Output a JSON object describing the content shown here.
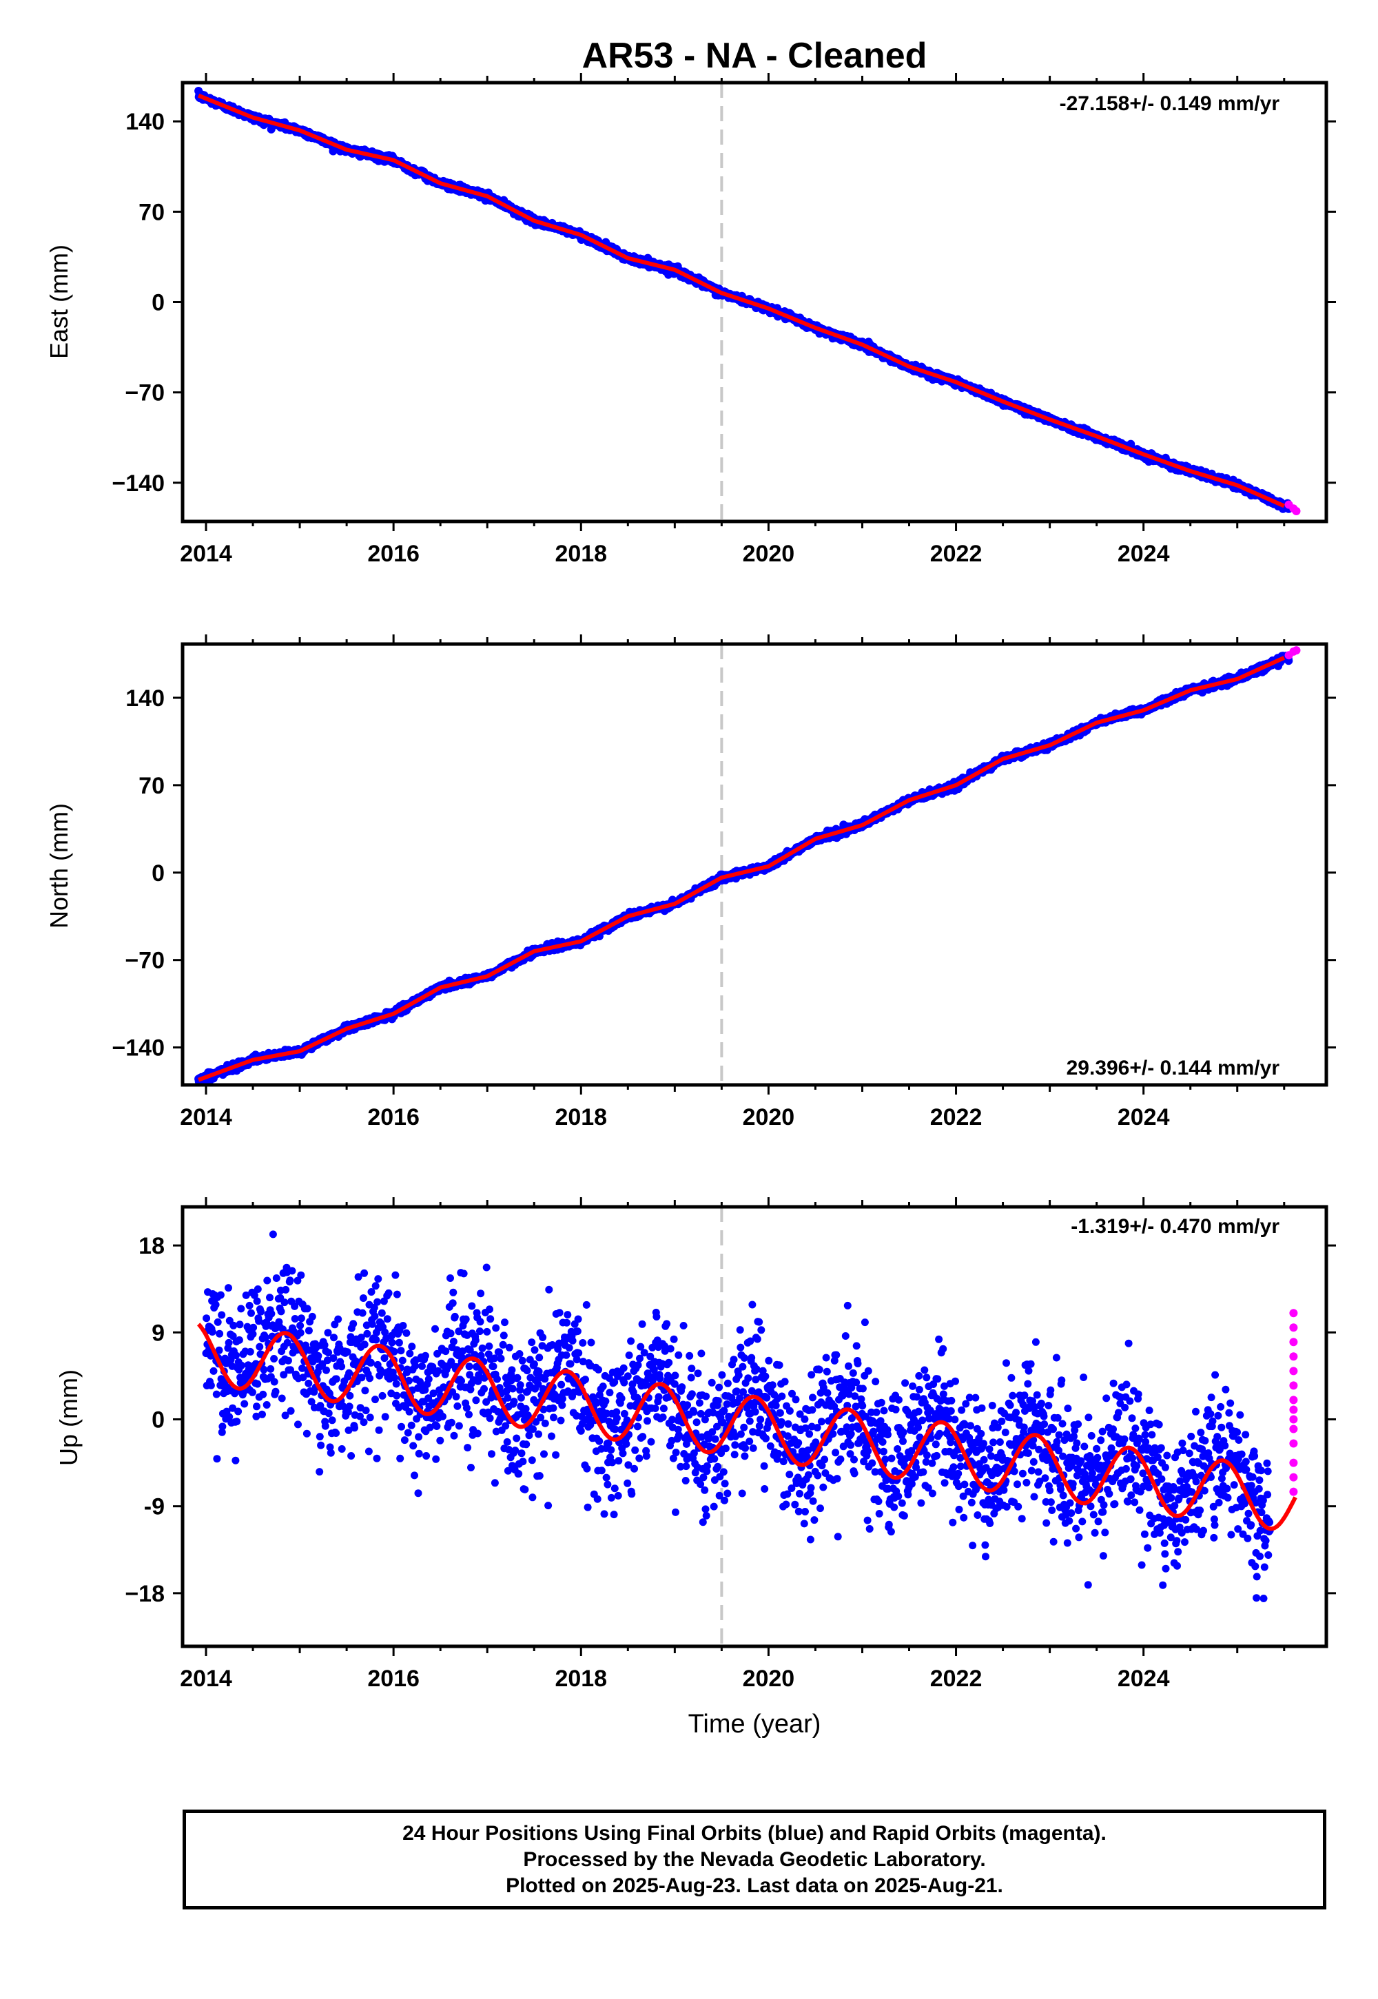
{
  "title": "AR53  - NA - Cleaned",
  "colors": {
    "final_orbits": "#0000ff",
    "rapid_orbits": "#ff00ff",
    "model": "#ff0000",
    "event_line": "#c8c8c8",
    "frame": "#000000"
  },
  "event_line_year": 2019.5,
  "caption": {
    "line1": "24 Hour Positions Using Final Orbits (blue) and Rapid Orbits (magenta).",
    "line2": "Processed by the Nevada Geodetic Laboratory.",
    "line3": "Plotted on 2025-Aug-23. Last data on 2025-Aug-21."
  },
  "chart_data": [
    {
      "type": "scatter",
      "ylabel": "East (mm)",
      "xlabel": "",
      "xlim": [
        2013.75,
        2025.95
      ],
      "ylim": [
        -170,
        170
      ],
      "xticks": [
        "2014",
        "2016",
        "2018",
        "2020",
        "2022",
        "2024"
      ],
      "yticks": [
        "140",
        "70",
        "0",
        "−70",
        "−140"
      ],
      "ytick_values": [
        140,
        70,
        0,
        -70,
        -140
      ],
      "rate_label": "-27.158+/- 0.149 mm/yr",
      "rate_position": "top-right",
      "velocity_mm_per_yr": -27.158,
      "series": [
        {
          "name": "Final Orbits (blue)",
          "x": [
            2013.92,
            2014.5,
            2015.0,
            2015.5,
            2016.0,
            2016.5,
            2017.0,
            2017.5,
            2018.0,
            2018.5,
            2019.0,
            2019.5,
            2020.0,
            2020.5,
            2021.0,
            2021.5,
            2022.0,
            2022.5,
            2023.0,
            2023.5,
            2024.0,
            2024.5,
            2025.0,
            2025.5
          ],
          "y": [
            160,
            143,
            133,
            118,
            110,
            92,
            82,
            63,
            52,
            34,
            25,
            7,
            -5,
            -20,
            -33,
            -50,
            -62,
            -77,
            -91,
            -104,
            -118,
            -131,
            -142,
            -158
          ]
        },
        {
          "name": "Rapid Orbits (magenta)",
          "x": [
            2025.55,
            2025.6,
            2025.63
          ],
          "y": [
            -157,
            -160,
            -162
          ]
        }
      ]
    },
    {
      "type": "scatter",
      "ylabel": "North (mm)",
      "xlabel": "",
      "xlim": [
        2013.75,
        2025.95
      ],
      "ylim": [
        -170,
        183
      ],
      "xticks": [
        "2014",
        "2016",
        "2018",
        "2020",
        "2022",
        "2024"
      ],
      "yticks": [
        "140",
        "70",
        "0",
        "−70",
        "−140"
      ],
      "ytick_values": [
        140,
        70,
        0,
        -70,
        -140
      ],
      "rate_label": "29.396+/- 0.144 mm/yr",
      "rate_position": "bottom-right",
      "velocity_mm_per_yr": 29.396,
      "series": [
        {
          "name": "Final Orbits (blue)",
          "x": [
            2013.92,
            2014.5,
            2015.0,
            2015.5,
            2016.0,
            2016.5,
            2017.0,
            2017.5,
            2018.0,
            2018.5,
            2019.0,
            2019.5,
            2020.0,
            2020.5,
            2021.0,
            2021.5,
            2022.0,
            2022.5,
            2023.0,
            2023.5,
            2024.0,
            2024.5,
            2025.0,
            2025.5
          ],
          "y": [
            -166,
            -150,
            -143,
            -125,
            -113,
            -92,
            -83,
            -63,
            -55,
            -35,
            -25,
            -4,
            5,
            27,
            38,
            58,
            70,
            91,
            102,
            120,
            130,
            146,
            155,
            172
          ]
        },
        {
          "name": "Rapid Orbits (magenta)",
          "x": [
            2025.55,
            2025.6,
            2025.63
          ],
          "y": [
            174,
            177,
            178
          ]
        }
      ]
    },
    {
      "type": "scatter",
      "ylabel": "Up (mm)",
      "xlabel": "Time (year)",
      "xlim": [
        2013.75,
        2025.95
      ],
      "ylim": [
        -23.5,
        22
      ],
      "xticks": [
        "2014",
        "2016",
        "2018",
        "2020",
        "2022",
        "2024"
      ],
      "yticks": [
        "18",
        "9",
        "0",
        "-9",
        "−18"
      ],
      "ytick_values": [
        18,
        9,
        0,
        -9,
        -18
      ],
      "rate_label": "-1.319+/- 0.470 mm/yr",
      "rate_position": "top-right",
      "velocity_mm_per_yr": -1.319,
      "model_peaks": {
        "x": [
          2013.92,
          2014.3,
          2014.85,
          2015.3,
          2015.85,
          2016.3,
          2016.85,
          2017.3,
          2017.85,
          2018.3,
          2018.85,
          2019.3,
          2019.85,
          2020.3,
          2020.85,
          2021.3,
          2021.85,
          2022.3,
          2022.85,
          2023.3,
          2023.85,
          2024.3,
          2024.85,
          2025.3,
          2025.62
        ],
        "y": [
          10,
          3.7,
          10,
          2.5,
          8.6,
          1.1,
          7.3,
          -0.2,
          6,
          -1.6,
          4.7,
          -2.9,
          3.4,
          -4.2,
          2.1,
          -5.5,
          0.8,
          -6.8,
          -0.5,
          -8.1,
          -1.8,
          -9.4,
          -3.1,
          -10.7,
          -6.8
        ]
      },
      "series": [
        {
          "name": "Final Orbits (blue)",
          "x": [
            2014.0,
            2014.5,
            2014.9,
            2015.3,
            2015.8,
            2016.3,
            2016.8,
            2017.3,
            2017.8,
            2018.3,
            2018.8,
            2019.3,
            2019.8,
            2020.3,
            2020.8,
            2021.3,
            2021.8,
            2022.3,
            2022.8,
            2023.3,
            2023.8,
            2024.3,
            2024.8,
            2025.3
          ],
          "y": [
            9,
            4,
            11,
            2,
            12,
            2,
            8,
            -3,
            6,
            -2,
            5,
            -3,
            3,
            -5,
            2,
            -5,
            1,
            -6,
            -1,
            -8,
            -2,
            -9,
            -4,
            -10
          ]
        },
        {
          "name": "Rapid Orbits (magenta)",
          "x": [
            2025.6,
            2025.6,
            2025.6,
            2025.6,
            2025.6,
            2025.6,
            2025.6,
            2025.6,
            2025.6,
            2025.6,
            2025.6,
            2025.6,
            2025.6,
            2025.6
          ],
          "y": [
            11,
            9.5,
            8,
            6.5,
            5,
            3.5,
            2,
            1,
            0,
            -1,
            -2.5,
            -4.5,
            -6,
            -7.5
          ]
        }
      ]
    }
  ]
}
